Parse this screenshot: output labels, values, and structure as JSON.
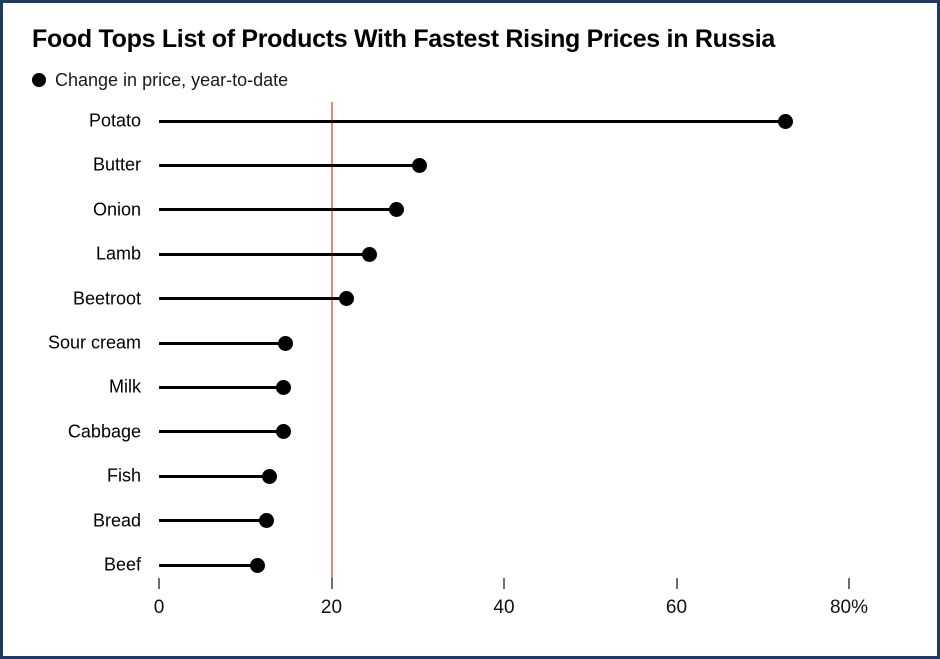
{
  "frame": {
    "border_color": "#1f3864",
    "background_color": "#ffffff"
  },
  "chart_data": {
    "type": "bar",
    "variant": "horizontal-lollipop",
    "title": "Food Tops List of Products With Fastest Rising Prices in Russia",
    "legend": [
      {
        "label": "Change in price, year-to-date",
        "marker": "dot-icon",
        "color": "#000000"
      }
    ],
    "legend_position": "top-left",
    "categories": [
      "Potato",
      "Butter",
      "Onion",
      "Lamb",
      "Beetroot",
      "Sour cream",
      "Milk",
      "Cabbage",
      "Fish",
      "Bread",
      "Beef"
    ],
    "values": [
      72.6,
      30.2,
      27.5,
      24.4,
      21.7,
      14.7,
      14.4,
      14.4,
      12.8,
      12.5,
      11.4
    ],
    "unit": "%",
    "xlabel": "",
    "ylabel": "",
    "xlim": [
      0,
      80
    ],
    "xticks": [
      0,
      20,
      40,
      60,
      80
    ],
    "xtick_labels": [
      "0",
      "20",
      "40",
      "60",
      "80%"
    ],
    "grid": false,
    "series_color": "#000000",
    "reference_line": {
      "value": 20,
      "color": "#f4837b"
    }
  }
}
